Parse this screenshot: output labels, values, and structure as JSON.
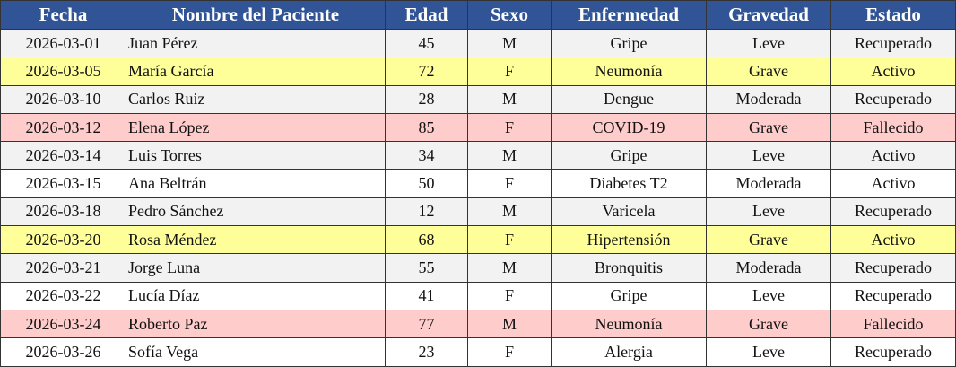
{
  "table": {
    "header": [
      "Fecha",
      "Nombre del Paciente",
      "Edad",
      "Sexo",
      "Enfermedad",
      "Gravedad",
      "Estado"
    ],
    "rows": [
      [
        "2026-03-01",
        "Juan Pérez",
        45,
        "M",
        "Gripe",
        "Leve",
        "Recuperado"
      ],
      [
        "2026-03-05",
        "María García",
        72,
        "F",
        "Neumonía",
        "Grave",
        "Activo"
      ],
      [
        "2026-03-10",
        "Carlos Ruiz",
        28,
        "M",
        "Dengue",
        "Moderada",
        "Recuperado"
      ],
      [
        "2026-03-12",
        "Elena López",
        85,
        "F",
        "COVID-19",
        "Grave",
        "Fallecido"
      ],
      [
        "2026-03-14",
        "Luis Torres",
        34,
        "M",
        "Gripe",
        "Leve",
        "Activo"
      ],
      [
        "2026-03-15",
        "Ana Beltrán",
        50,
        "F",
        "Diabetes T2",
        "Moderada",
        "Activo"
      ],
      [
        "2026-03-18",
        "Pedro Sánchez",
        12,
        "M",
        "Varicela",
        "Leve",
        "Recuperado"
      ],
      [
        "2026-03-20",
        "Rosa Méndez",
        68,
        "F",
        "Hipertensión",
        "Grave",
        "Activo"
      ],
      [
        "2026-03-21",
        "Jorge Luna",
        55,
        "M",
        "Bronquitis",
        "Moderada",
        "Recuperado"
      ],
      [
        "2026-03-22",
        "Lucía Díaz",
        41,
        "F",
        "Gripe",
        "Leve",
        "Recuperado"
      ],
      [
        "2026-03-24",
        "Roberto Paz",
        77,
        "M",
        "Neumonía",
        "Grave",
        "Fallecido"
      ],
      [
        "2026-03-26",
        "Sofía Vega",
        23,
        "F",
        "Alergia",
        "Leve",
        "Recuperado"
      ]
    ]
  }
}
